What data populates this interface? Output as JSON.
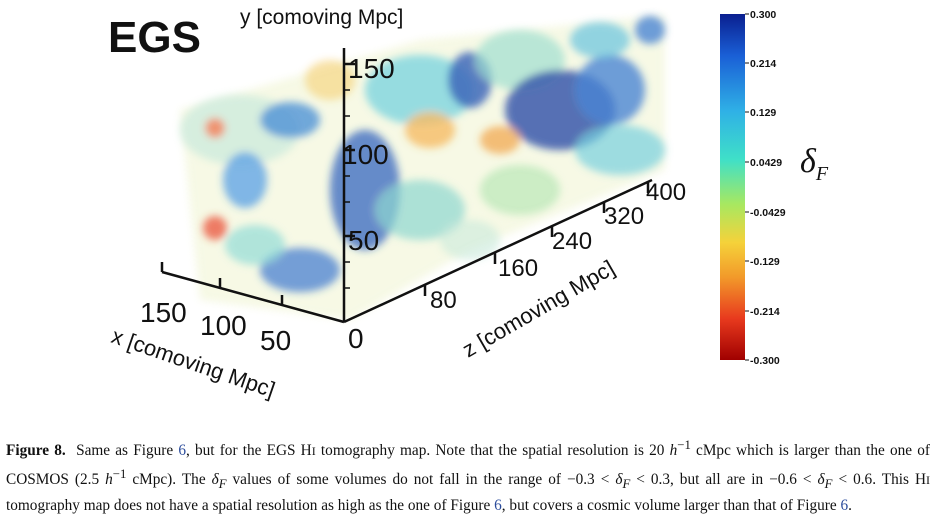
{
  "panel": {
    "title": "EGS",
    "y_axis_label": "y [comoving Mpc]",
    "x_axis_label": "x [comoving Mpc]",
    "z_axis_label": "z [comoving Mpc]",
    "y_ticks": [
      "150",
      "100",
      "50"
    ],
    "x_ticks": [
      "150",
      "100",
      "50"
    ],
    "z_ticks": [
      "0",
      "80",
      "160",
      "240",
      "320",
      "400"
    ]
  },
  "colorbar": {
    "label_symbol": "δ",
    "label_sub": "F",
    "ticks": [
      "0.300",
      "0.214",
      "0.129",
      "0.0429",
      "-0.0429",
      "-0.129",
      "-0.214",
      "-0.300"
    ],
    "colors_top_to_bottom": [
      "#0a1f8f",
      "#1a5fd6",
      "#2fb0e6",
      "#3fe0c8",
      "#a8e860",
      "#f5d23a",
      "#f29a2a",
      "#e83a1e",
      "#a00000"
    ]
  },
  "caption": {
    "label": "Figure 8.",
    "t1": "Same as Figure ",
    "ref1": "6",
    "t2": ", but for the EGS H",
    "hi1_small": "I",
    "t3": " tomography map. Note that the spatial resolution is 20 ",
    "h_sym": "h",
    "h_exp1": "−1",
    "t4": " cMpc which is larger than the one of COSMOS (2.5 ",
    "h_exp2": "−1",
    "t5": " cMpc). The ",
    "t6": " values of some volumes do not fall in the range of −0.3 < ",
    "t7": " < 0.3, but all are in −0.6 < ",
    "t8": " < 0.6. This H",
    "hi2_small": "I",
    "t9": " tomography map does not have a spatial resolution as high as the one of Figure ",
    "ref2": "6",
    "t10": ", but covers a cosmic volume larger than that of Figure ",
    "ref3": "6",
    "t11": "."
  }
}
